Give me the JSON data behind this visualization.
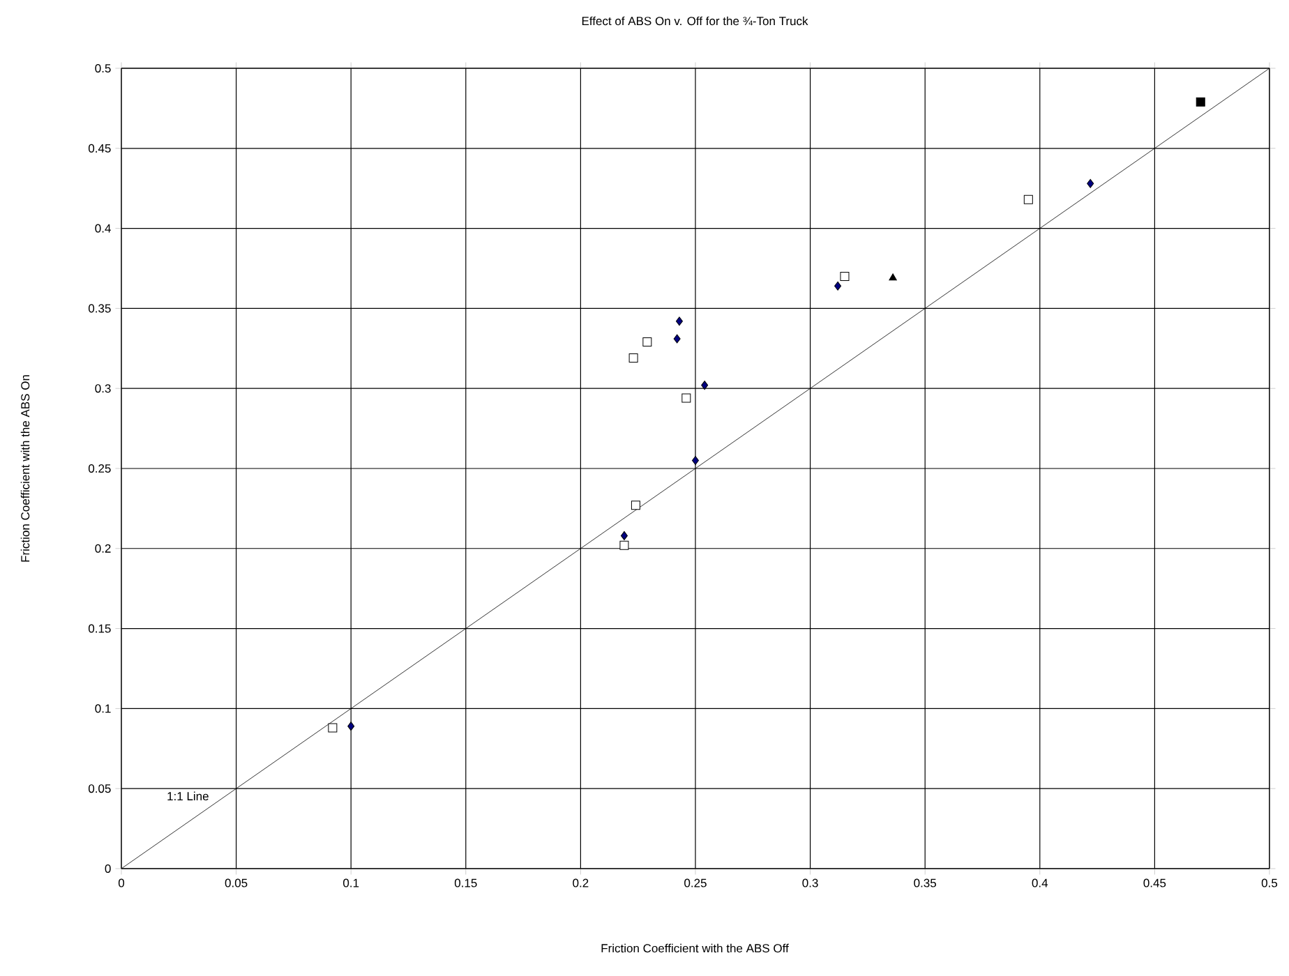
{
  "chart_data": {
    "type": "scatter",
    "title": "Effect of ABS On v. Off for the ¾-Ton Truck",
    "xlabel": "Friction Coefficient with the ABS Off",
    "ylabel": "Friction Coefficient with the ABS On",
    "xlim": [
      0,
      0.5
    ],
    "ylim": [
      0,
      0.5
    ],
    "xticks": [
      0,
      0.05,
      0.1,
      0.15,
      0.2,
      0.25,
      0.3,
      0.35,
      0.4,
      0.45,
      0.5
    ],
    "yticks": [
      0,
      0.05,
      0.1,
      0.15,
      0.2,
      0.25,
      0.3,
      0.35,
      0.4,
      0.45,
      0.5
    ],
    "grid": true,
    "series": [
      {
        "color": "#000000",
        "marker": "square",
        "x": [
          0.47
        ],
        "values": [
          0.479
        ]
      },
      {
        "color": "#ffffff",
        "marker": "square",
        "x": [
          0.092,
          0.219,
          0.224,
          0.223,
          0.229,
          0.246,
          0.315,
          0.395
        ],
        "values": [
          0.088,
          0.202,
          0.227,
          0.319,
          0.329,
          0.294,
          0.37,
          0.418
        ]
      },
      {
        "color": "#000000",
        "marker": "triangle",
        "x": [
          0.336
        ],
        "values": [
          0.369
        ]
      },
      {
        "color": "#000080",
        "marker": "diamond",
        "x": [
          0.1,
          0.219,
          0.25,
          0.254,
          0.242,
          0.243,
          0.312,
          0.422
        ],
        "values": [
          0.089,
          0.208,
          0.255,
          0.302,
          0.331,
          0.342,
          0.364,
          0.428
        ]
      },
      {
        "type": "line",
        "color": "#000000",
        "marker": "none",
        "x": [
          0,
          0.5
        ],
        "values": [
          0,
          0.5
        ]
      }
    ],
    "annotations": [
      {
        "text": "1:1 Line",
        "x": 0.04,
        "y": 0.04
      }
    ]
  }
}
